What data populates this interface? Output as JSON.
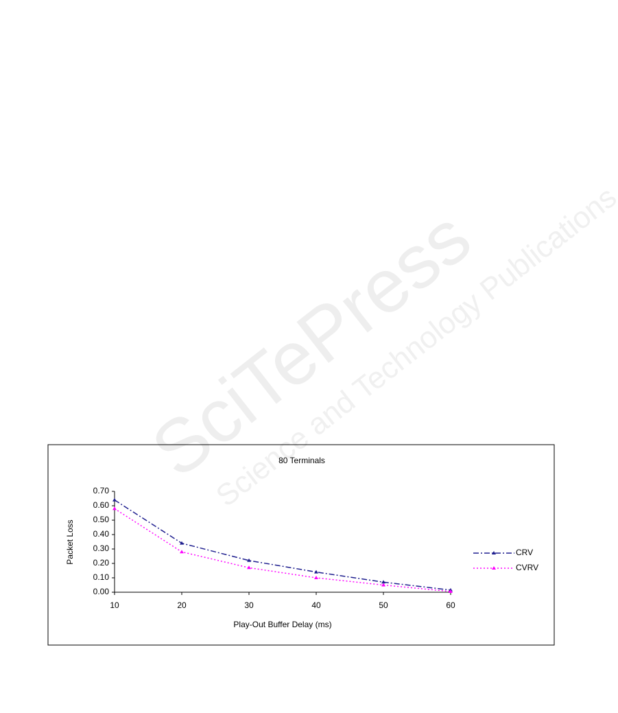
{
  "watermark": {
    "brand": "SciTePress",
    "tagline": "Science and Technology Publications"
  },
  "chart_data": {
    "type": "line",
    "title": "80 Terminals",
    "x_label": "Play-Out Buffer Delay (ms)",
    "y_label": "Packet Loss",
    "x": [
      10,
      20,
      30,
      40,
      50,
      60
    ],
    "series": [
      {
        "name": "CRV",
        "color": "#1f1f8f",
        "values": [
          0.64,
          0.34,
          0.22,
          0.14,
          0.07,
          0.015
        ]
      },
      {
        "name": "CVRV",
        "color": "#ff00ff",
        "values": [
          0.58,
          0.28,
          0.17,
          0.1,
          0.05,
          0.005
        ]
      }
    ],
    "xlim": [
      10,
      60
    ],
    "xticks": [
      10,
      20,
      30,
      40,
      50,
      60
    ],
    "ylim": [
      0,
      0.7
    ],
    "yticks": [
      {
        "value": 0,
        "label": "0.00"
      },
      {
        "value": 0.1,
        "label": "0.10"
      },
      {
        "value": 0.2,
        "label": "0.20"
      },
      {
        "value": 0.3,
        "label": "0.30"
      },
      {
        "value": 0.4,
        "label": "0.40"
      },
      {
        "value": 0.5,
        "label": "0.50"
      },
      {
        "value": 0.6,
        "label": "0.60"
      },
      {
        "value": 0.7,
        "label": "0.70"
      }
    ],
    "legend": "right"
  }
}
